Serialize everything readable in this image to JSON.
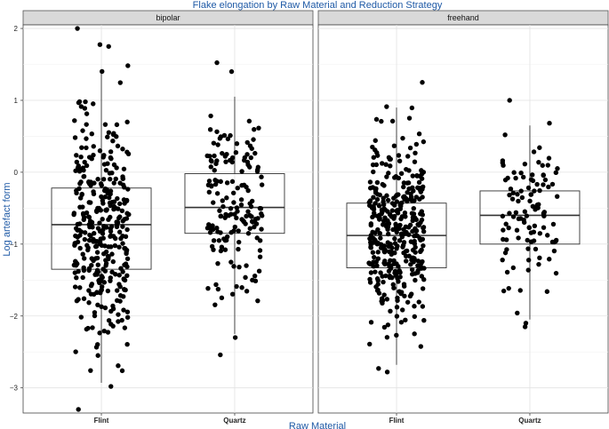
{
  "chart_data": {
    "type": "box",
    "title": "Flake elongation by Raw Material and Reduction Strategy",
    "xlabel": "Raw Material",
    "ylabel": "Log artefact form",
    "categories": [
      "Flint",
      "Quartz"
    ],
    "ylim": [
      -3.35,
      2.05
    ],
    "yticks": [
      -3,
      -2,
      -1,
      0,
      1,
      2
    ],
    "grid": true,
    "facets": [
      {
        "label": "bipolar",
        "boxes": [
          {
            "category": "Flint",
            "q1": -1.35,
            "median": -0.73,
            "q3": -0.22,
            "whisker_low": -2.93,
            "whisker_high": 1.4
          },
          {
            "category": "Quartz",
            "q1": -0.85,
            "median": -0.49,
            "q3": -0.02,
            "whisker_low": -2.25,
            "whisker_high": 1.05
          }
        ]
      },
      {
        "label": "freehand",
        "boxes": [
          {
            "category": "Flint",
            "q1": -1.33,
            "median": -0.88,
            "q3": -0.43,
            "whisker_low": -2.68,
            "whisker_high": 0.9
          },
          {
            "category": "Quartz",
            "q1": -1.0,
            "median": -0.6,
            "q3": -0.26,
            "whisker_low": -2.05,
            "whisker_high": 0.65
          }
        ]
      }
    ]
  }
}
